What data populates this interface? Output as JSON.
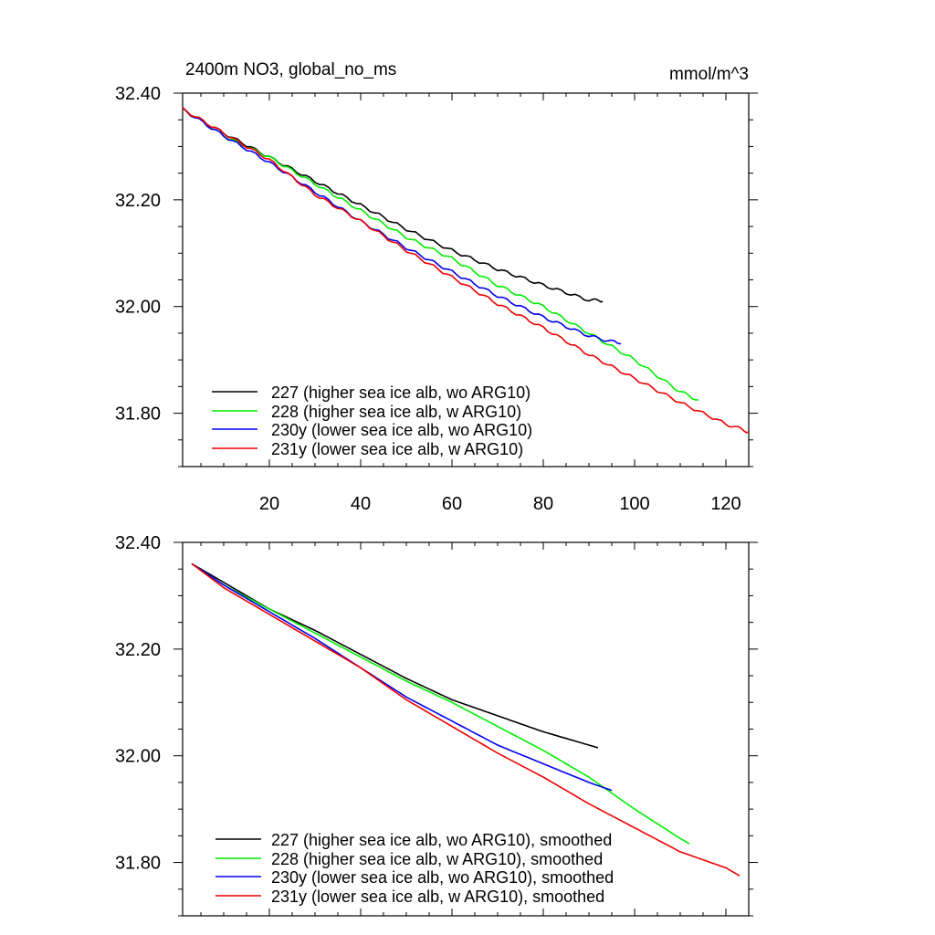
{
  "colors": {
    "227": "#000000",
    "228": "#00ee00",
    "230y": "#0000ee",
    "231y": "#ee0000"
  },
  "chart_data": [
    {
      "type": "line",
      "title": "2400m NO3, global_no_ms",
      "units": "mmol/m^3",
      "xlim": [
        1,
        125
      ],
      "ylim": [
        31.7,
        32.4
      ],
      "xticks": [
        20,
        40,
        60,
        80,
        100,
        120
      ],
      "xtick_labels": [
        "20",
        "40",
        "60",
        "80",
        "100",
        "120"
      ],
      "yticks": [
        32.4,
        32.2,
        32.0,
        31.8
      ],
      "ytick_labels": [
        "32.40",
        "32.20",
        "32.00",
        "31.80"
      ],
      "legend_position": "bottom-left",
      "series": [
        {
          "key": "227",
          "name": "227 (higher sea ice alb, wo ARG10)",
          "x": [
            1,
            10,
            20,
            30,
            40,
            50,
            60,
            70,
            80,
            90,
            93
          ],
          "y": [
            32.37,
            32.325,
            32.28,
            32.235,
            32.19,
            32.145,
            32.105,
            32.07,
            32.04,
            32.012,
            32.01
          ]
        },
        {
          "key": "228",
          "name": "228 (higher sea ice alb, w ARG10)",
          "x": [
            1,
            10,
            20,
            30,
            40,
            50,
            60,
            70,
            80,
            90,
            100,
            110,
            114
          ],
          "y": [
            32.37,
            32.32,
            32.28,
            32.23,
            32.18,
            32.13,
            32.09,
            32.04,
            32.0,
            31.95,
            31.9,
            31.84,
            31.825
          ]
        },
        {
          "key": "230y",
          "name": "230y (lower sea ice alb, wo ARG10)",
          "x": [
            1,
            10,
            20,
            30,
            40,
            50,
            60,
            70,
            80,
            90,
            97
          ],
          "y": [
            32.37,
            32.32,
            32.27,
            32.215,
            32.16,
            32.11,
            32.065,
            32.02,
            31.98,
            31.945,
            31.93
          ]
        },
        {
          "key": "231y",
          "name": "231y (lower sea ice alb, w ARG10)",
          "x": [
            1,
            10,
            20,
            30,
            40,
            50,
            60,
            70,
            80,
            90,
            100,
            110,
            120,
            125
          ],
          "y": [
            32.37,
            32.325,
            32.275,
            32.21,
            32.16,
            32.105,
            32.055,
            32.005,
            31.96,
            31.91,
            31.865,
            31.82,
            31.78,
            31.765
          ]
        }
      ]
    },
    {
      "type": "line",
      "title": "",
      "units": "",
      "xlim": [
        1,
        125
      ],
      "ylim": [
        31.7,
        32.4
      ],
      "xticks": [
        20,
        40,
        60,
        80,
        100,
        120
      ],
      "xtick_labels": [],
      "yticks": [
        32.4,
        32.2,
        32.0,
        31.8
      ],
      "ytick_labels": [
        "32.40",
        "32.20",
        "32.00",
        "31.80"
      ],
      "legend_position": "bottom-left",
      "series": [
        {
          "key": "227",
          "name": "227 (higher sea ice alb, wo ARG10), smoothed",
          "x": [
            3,
            10,
            20,
            30,
            40,
            50,
            60,
            70,
            80,
            90,
            92
          ],
          "y": [
            32.36,
            32.325,
            32.275,
            32.235,
            32.19,
            32.145,
            32.105,
            32.075,
            32.045,
            32.02,
            32.015
          ]
        },
        {
          "key": "228",
          "name": "228 (higher sea ice alb, w ARG10), smoothed",
          "x": [
            3,
            10,
            20,
            30,
            40,
            50,
            60,
            70,
            80,
            90,
            100,
            110,
            112
          ],
          "y": [
            32.36,
            32.32,
            32.275,
            32.23,
            32.185,
            32.14,
            32.1,
            32.055,
            32.01,
            31.96,
            31.9,
            31.845,
            31.835
          ]
        },
        {
          "key": "230y",
          "name": "230y (lower sea ice alb, wo ARG10), smoothed",
          "x": [
            3,
            10,
            20,
            30,
            40,
            50,
            60,
            70,
            80,
            90,
            95
          ],
          "y": [
            32.36,
            32.32,
            32.27,
            32.22,
            32.165,
            32.11,
            32.065,
            32.02,
            31.985,
            31.95,
            31.935
          ]
        },
        {
          "key": "231y",
          "name": "231y (lower sea ice alb, w ARG10), smoothed",
          "x": [
            3,
            10,
            20,
            30,
            40,
            50,
            60,
            70,
            80,
            90,
            100,
            110,
            120,
            123
          ],
          "y": [
            32.36,
            32.315,
            32.265,
            32.215,
            32.165,
            32.105,
            32.055,
            32.005,
            31.96,
            31.91,
            31.865,
            31.82,
            31.79,
            31.775
          ]
        }
      ]
    }
  ]
}
